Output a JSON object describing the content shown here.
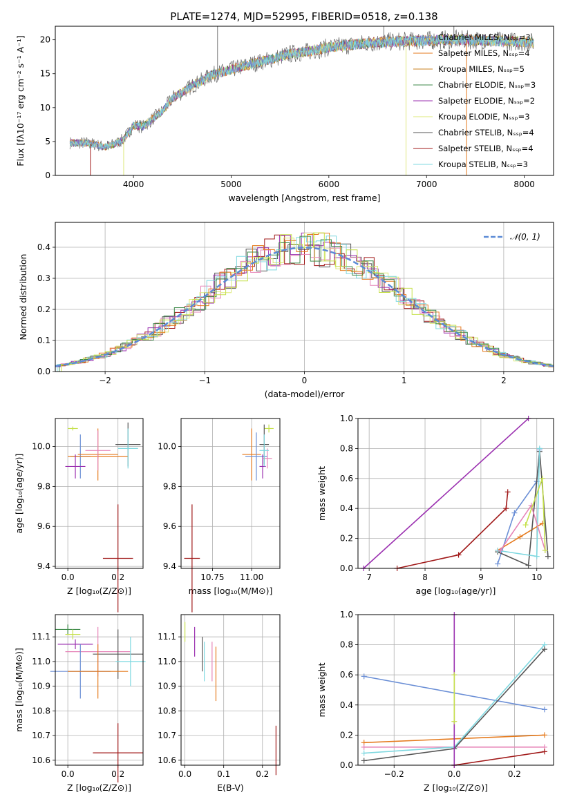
{
  "page_title": "PLATE=1274, MJD=52995, FIBERID=0518, z=0.138",
  "colors": {
    "chabrier_miles": "#6b8fd6",
    "salpeter_miles": "#e57a1d",
    "kroupa_miles": "#c87f1e",
    "chabrier_elodie": "#3e8a4a",
    "salpeter_elodie": "#9b30b0",
    "kroupa_elodie": "#dde87a",
    "chabrier_stelib": "#555555",
    "salpeter_stelib": "#a01818",
    "kroupa_stelib": "#7fd8e0",
    "pink": "#e684b8",
    "lime": "#c5e04a",
    "gaussian": "#5b8ad6"
  },
  "chart_data": [
    {
      "id": "spectrum",
      "type": "line",
      "title": "PLATE=1274, MJD=52995, FIBERID=0518, z=0.138",
      "xlabel": "wavelength [Angstrom, rest frame]",
      "ylabel": "Flux [fλ10⁻¹⁷ erg cm⁻² s⁻¹ A⁻¹]",
      "xlim": [
        3200,
        8300
      ],
      "ylim": [
        0,
        22
      ],
      "xticks": [
        4000,
        5000,
        6000,
        7000,
        8000
      ],
      "yticks": [
        0,
        5,
        10,
        15,
        20
      ],
      "legend_position": "top-right",
      "legend": [
        "Chabrier MILES, Nₛₛₚ=3",
        "Salpeter MILES, Nₛₛₚ=4",
        "Kroupa MILES, Nₛₛₚ=5",
        "Chabrier ELODIE, Nₛₛₚ=3",
        "Salpeter ELODIE, Nₛₛₚ=2",
        "Kroupa ELODIE, Nₛₛₚ=3",
        "Chabrier STELIB, Nₛₛₚ=4",
        "Salpeter STELIB, Nₛₛₚ=4",
        "Kroupa STELIB, Nₛₛₚ=3"
      ],
      "continuum": {
        "x": [
          3350,
          3500,
          3600,
          3700,
          3800,
          3900,
          4000,
          4100,
          4200,
          4300,
          4400,
          4600,
          4800,
          5000,
          5200,
          5400,
          5600,
          5800,
          6000,
          6200,
          6400,
          6600,
          6800,
          7000,
          7200,
          7400,
          7600,
          7800,
          8000,
          8100
        ],
        "y": [
          4.8,
          4.8,
          4.6,
          4.2,
          4.6,
          5.3,
          7.4,
          7.2,
          8.4,
          9.5,
          11.4,
          13.2,
          14.8,
          15.6,
          16.4,
          17.1,
          17.9,
          18.3,
          18.9,
          19.2,
          19.5,
          19.7,
          19.8,
          19.9,
          20.0,
          20.0,
          19.9,
          19.8,
          19.7,
          19.6
        ]
      },
      "spikes": [
        {
          "x": 4861,
          "y": 22.0
        },
        {
          "x": 6563,
          "y": 22.0
        },
        {
          "x": 7280,
          "y": 22.0
        }
      ]
    },
    {
      "id": "residual_histogram",
      "type": "bar",
      "xlabel": "(data-model)/error",
      "ylabel": "Normed distribution",
      "xlim": [
        -2.5,
        2.5
      ],
      "ylim": [
        0,
        0.48
      ],
      "xticks": [
        -2,
        -1,
        0,
        1,
        2
      ],
      "yticks": [
        0.0,
        0.1,
        0.2,
        0.3,
        0.4
      ],
      "legend_position": "top-right",
      "legend": [
        "𝒩(0, 1)"
      ],
      "gaussian": {
        "mean": 0,
        "sigma": 1
      }
    },
    {
      "id": "age_vs_Z",
      "type": "scatter",
      "xlabel": "Z [log₁₀(Z/Z⊙)]",
      "ylabel": "age  [log₁₀(age/yr)]",
      "xlim": [
        -0.05,
        0.3
      ],
      "ylim": [
        9.39,
        10.14
      ],
      "xticks": [
        0.0,
        0.2
      ],
      "yticks": [
        9.4,
        9.6,
        9.8,
        10.0
      ],
      "points": [
        {
          "x": 0.02,
          "y": 10.09,
          "xerr": 0.02,
          "yerr": 0.01,
          "color": "lime"
        },
        {
          "x": 0.05,
          "y": 9.95,
          "xerr": 0.04,
          "yerr": 0.11,
          "color": "chabrier_miles"
        },
        {
          "x": 0.12,
          "y": 9.96,
          "xerr": 0.08,
          "yerr": 0.13,
          "color": "salpeter_miles"
        },
        {
          "x": 0.12,
          "y": 9.95,
          "xerr": 0.12,
          "yerr": 0.01,
          "color": "salpeter_miles"
        },
        {
          "x": 0.03,
          "y": 9.9,
          "xerr": 0.04,
          "yerr": 0.06,
          "color": "salpeter_elodie"
        },
        {
          "x": 0.12,
          "y": 9.98,
          "xerr": 0.05,
          "yerr": 0.1,
          "color": "pink"
        },
        {
          "x": 0.24,
          "y": 10.01,
          "xerr": 0.05,
          "yerr": 0.11,
          "color": "chabrier_stelib"
        },
        {
          "x": 0.24,
          "y": 9.99,
          "xerr": 0.04,
          "yerr": 0.1,
          "color": "kroupa_stelib"
        },
        {
          "x": 0.2,
          "y": 9.44,
          "xerr": 0.06,
          "yerr": 0.27,
          "color": "salpeter_stelib"
        }
      ]
    },
    {
      "id": "age_vs_mass",
      "type": "scatter",
      "xlabel": "mass [log₁₀(M/M⊙)]",
      "ylabel": "",
      "xlim": [
        10.55,
        11.18
      ],
      "ylim": [
        9.39,
        10.14
      ],
      "xticks": [
        10.75,
        11.0
      ],
      "yticks": [
        9.4,
        9.6,
        9.8,
        10.0
      ],
      "points": [
        {
          "x": 11.11,
          "y": 10.09,
          "xerr": 0.03,
          "yerr": 0.02,
          "color": "lime"
        },
        {
          "x": 11.0,
          "y": 9.96,
          "xerr": 0.06,
          "yerr": 0.13,
          "color": "salpeter_miles"
        },
        {
          "x": 11.03,
          "y": 9.95,
          "xerr": 0.07,
          "yerr": 0.12,
          "color": "chabrier_miles"
        },
        {
          "x": 11.07,
          "y": 9.9,
          "xerr": 0.02,
          "yerr": 0.06,
          "color": "salpeter_elodie"
        },
        {
          "x": 11.1,
          "y": 9.94,
          "xerr": 0.03,
          "yerr": 0.05,
          "color": "pink"
        },
        {
          "x": 11.08,
          "y": 10.01,
          "xerr": 0.03,
          "yerr": 0.1,
          "color": "chabrier_stelib"
        },
        {
          "x": 11.08,
          "y": 9.98,
          "xerr": 0.03,
          "yerr": 0.08,
          "color": "kroupa_stelib"
        },
        {
          "x": 10.62,
          "y": 9.44,
          "xerr": 0.05,
          "yerr": 0.27,
          "color": "salpeter_stelib"
        }
      ]
    },
    {
      "id": "mass_weight_vs_age",
      "type": "line",
      "xlabel": "age  [log₁₀(age/yr)]",
      "ylabel": "mass weight",
      "xlim": [
        6.8,
        10.3
      ],
      "ylim": [
        0,
        1
      ],
      "xticks": [
        7,
        8,
        9,
        10
      ],
      "yticks": [
        0.0,
        0.2,
        0.4,
        0.6,
        0.8,
        1.0
      ],
      "series": [
        {
          "color": "salpeter_elodie",
          "x": [
            6.9,
            9.85
          ],
          "y": [
            0.0,
            1.0
          ]
        },
        {
          "color": "salpeter_stelib",
          "x": [
            7.5,
            8.6,
            9.45,
            9.48
          ],
          "y": [
            0.0,
            0.09,
            0.4,
            0.51
          ]
        },
        {
          "color": "chabrier_miles",
          "x": [
            9.3,
            9.6,
            10.0,
            10.05
          ],
          "y": [
            0.03,
            0.37,
            0.58,
            0.79
          ]
        },
        {
          "color": "salpeter_miles",
          "x": [
            9.3,
            9.7,
            10.1
          ],
          "y": [
            0.12,
            0.21,
            0.3
          ]
        },
        {
          "color": "chabrier_stelib",
          "x": [
            9.3,
            9.85,
            10.05,
            10.2
          ],
          "y": [
            0.11,
            0.02,
            0.78,
            0.08
          ]
        },
        {
          "color": "kroupa_stelib",
          "x": [
            9.3,
            10.0,
            10.05
          ],
          "y": [
            0.12,
            0.08,
            0.8
          ]
        },
        {
          "color": "pink",
          "x": [
            9.35,
            9.9,
            10.15
          ],
          "y": [
            0.12,
            0.42,
            0.12
          ]
        },
        {
          "color": "lime",
          "x": [
            9.8,
            10.1,
            10.15
          ],
          "y": [
            0.29,
            0.6,
            0.12
          ]
        }
      ]
    },
    {
      "id": "mass_vs_Z",
      "type": "scatter",
      "xlabel": "Z [log₁₀(Z/Z⊙)]",
      "ylabel": "mass [log₁₀(M/M⊙)]",
      "xlim": [
        -0.05,
        0.3
      ],
      "ylim": [
        10.58,
        11.19
      ],
      "xticks": [
        0.0,
        0.2
      ],
      "yticks": [
        10.6,
        10.7,
        10.8,
        10.9,
        11.0,
        11.1
      ],
      "points": [
        {
          "x": 0.0,
          "y": 11.13,
          "xerr": 0.05,
          "yerr": 0.02,
          "color": "chabrier_elodie"
        },
        {
          "x": 0.02,
          "y": 11.11,
          "xerr": 0.03,
          "yerr": 0.02,
          "color": "lime"
        },
        {
          "x": 0.03,
          "y": 11.07,
          "xerr": 0.07,
          "yerr": 0.02,
          "color": "salpeter_elodie"
        },
        {
          "x": 0.12,
          "y": 11.04,
          "xerr": 0.13,
          "yerr": 0.1,
          "color": "pink"
        },
        {
          "x": 0.2,
          "y": 11.03,
          "xerr": 0.1,
          "yerr": 0.1,
          "color": "chabrier_stelib"
        },
        {
          "x": 0.25,
          "y": 11.0,
          "xerr": 0.06,
          "yerr": 0.1,
          "color": "kroupa_stelib"
        },
        {
          "x": 0.05,
          "y": 10.96,
          "xerr": 0.12,
          "yerr": 0.11,
          "color": "chabrier_miles"
        },
        {
          "x": 0.12,
          "y": 10.96,
          "xerr": 0.12,
          "yerr": 0.11,
          "color": "salpeter_miles"
        },
        {
          "x": 0.2,
          "y": 10.63,
          "xerr": 0.1,
          "yerr": 0.12,
          "color": "salpeter_stelib"
        }
      ]
    },
    {
      "id": "mass_vs_ebv",
      "type": "scatter",
      "xlabel": "E(B-V)",
      "ylabel": "",
      "xlim": [
        -0.01,
        0.245
      ],
      "ylim": [
        10.58,
        11.19
      ],
      "xticks": [
        0.0,
        0.1,
        0.2
      ],
      "yticks": [
        10.6,
        10.7,
        10.8,
        10.9,
        11.0,
        11.1
      ],
      "points": [
        {
          "x": 0.0,
          "y": 11.12,
          "yerr": 0.04,
          "color": "lime"
        },
        {
          "x": 0.025,
          "y": 11.08,
          "yerr": 0.06,
          "color": "salpeter_elodie"
        },
        {
          "x": 0.045,
          "y": 11.03,
          "yerr": 0.07,
          "color": "chabrier_stelib"
        },
        {
          "x": 0.05,
          "y": 11.0,
          "yerr": 0.08,
          "color": "kroupa_stelib"
        },
        {
          "x": 0.07,
          "y": 11.0,
          "yerr": 0.08,
          "color": "pink"
        },
        {
          "x": 0.08,
          "y": 10.95,
          "yerr": 0.11,
          "color": "salpeter_miles"
        },
        {
          "x": 0.235,
          "y": 10.64,
          "yerr": 0.1,
          "color": "salpeter_stelib"
        }
      ]
    },
    {
      "id": "mass_weight_vs_Z",
      "type": "line",
      "xlabel": "Z [log₁₀(Z/Z⊙)]",
      "ylabel": "mass weight",
      "xlim": [
        -0.32,
        0.33
      ],
      "ylim": [
        0,
        1
      ],
      "xticks": [
        -0.2,
        0.0,
        0.2
      ],
      "yticks": [
        0.0,
        0.2,
        0.4,
        0.6,
        0.8,
        1.0
      ],
      "series": [
        {
          "color": "chabrier_miles",
          "x": [
            -0.3,
            0.3
          ],
          "y": [
            0.59,
            0.37
          ]
        },
        {
          "color": "salpeter_miles",
          "x": [
            -0.3,
            0.3
          ],
          "y": [
            0.15,
            0.2
          ]
        },
        {
          "color": "pink",
          "x": [
            -0.3,
            0.3
          ],
          "y": [
            0.12,
            0.12
          ]
        },
        {
          "color": "kroupa_stelib",
          "x": [
            -0.3,
            0.0,
            0.3
          ],
          "y": [
            0.08,
            0.12,
            0.8
          ]
        },
        {
          "color": "chabrier_stelib",
          "x": [
            -0.3,
            0.0,
            0.3
          ],
          "y": [
            0.03,
            0.11,
            0.77
          ]
        },
        {
          "color": "salpeter_stelib",
          "x": [
            0.0,
            0.3
          ],
          "y": [
            0.0,
            0.09
          ]
        },
        {
          "color": "salpeter_elodie",
          "x": [
            0.0,
            0.0
          ],
          "y": [
            0.0,
            1.0
          ]
        },
        {
          "color": "lime",
          "x": [
            0.0,
            0.0
          ],
          "y": [
            0.29,
            0.6
          ]
        }
      ]
    }
  ]
}
